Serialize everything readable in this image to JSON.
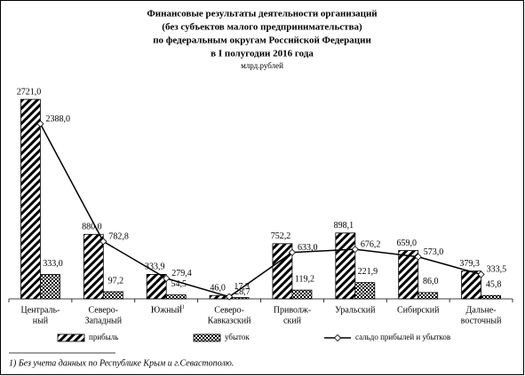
{
  "chart_data": {
    "type": "bar-line",
    "title": [
      "Финансовые результаты деятельности организаций",
      "(без субъектов малого предпринимательства)",
      "по федеральным округам Российской Федерации",
      "в I полугодии 2016 года"
    ],
    "unit": "млрд.рублей",
    "categories": [
      [
        "Централь-",
        "ный"
      ],
      [
        "Северо-",
        "Западный"
      ],
      [
        "Южный"
      ],
      [
        "Северо-",
        "Кавказский"
      ],
      [
        "Приволж-",
        "ский"
      ],
      [
        "Уральский"
      ],
      [
        "Сибирский"
      ],
      [
        "Дальне-",
        "восточный"
      ]
    ],
    "footnote_mark": "1)",
    "footnote": "1) Без учета данных по Республике Крым и г.Севастополю.",
    "series": [
      {
        "name": "прибыль",
        "kind": "bar",
        "pattern": "diagonal-hatch",
        "color": "#000000",
        "values": [
          2721.0,
          880.0,
          333.9,
          46.0,
          752.2,
          898.1,
          659.0,
          379.3
        ],
        "value_labels": [
          "2721,0",
          "880,0",
          "333,9",
          "46,0",
          "752,2",
          "898,1",
          "659,0",
          "379,3"
        ]
      },
      {
        "name": "убыток",
        "kind": "bar",
        "pattern": "checker",
        "color": "#000000",
        "values": [
          333.0,
          97.2,
          54.5,
          17.3,
          119.2,
          221.9,
          86.0,
          45.8
        ],
        "value_labels": [
          "333,0",
          "97,2",
          "54,5",
          "17,3",
          "119,2",
          "221,9",
          "86,0",
          "45,8"
        ]
      },
      {
        "name": "сальдо прибылей и убытков",
        "kind": "line",
        "marker": "diamond",
        "color": "#000000",
        "values": [
          2388.0,
          782.8,
          279.4,
          28.7,
          633.0,
          676.2,
          573.0,
          333.5
        ],
        "value_labels": [
          "2388,0",
          "782,8",
          "279,4",
          "28,7",
          "633,0",
          "676,2",
          "573,0",
          "333,5"
        ]
      }
    ],
    "ylim": [
      0,
      3000
    ]
  }
}
